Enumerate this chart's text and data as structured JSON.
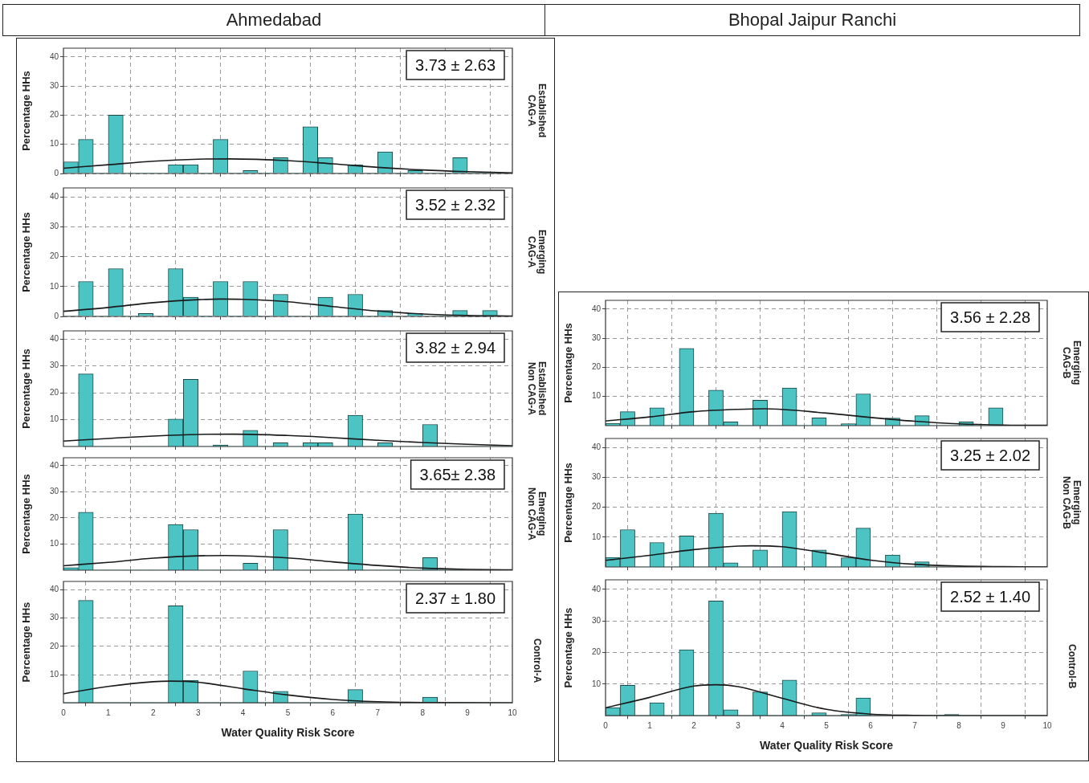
{
  "chart_data": [
    {
      "type": "histogram",
      "subtitle": "Ahmedabad",
      "y2label": "Established CAG-A",
      "ylabel": "Percentage HHs",
      "annotations": [
        "3.73 ± 2.63"
      ],
      "bins": [
        0,
        0.33,
        0.67,
        1,
        1.33,
        1.67,
        2,
        2.33,
        2.67,
        3,
        3.33,
        3.67,
        4,
        4.33,
        4.67,
        5,
        5.33,
        5.67,
        6,
        6.33,
        6.67,
        7,
        7.33,
        7.67,
        8,
        8.33,
        8.67,
        9,
        9.33,
        9.67,
        10
      ],
      "series": [
        {
          "color": "#4cc4c4",
          "values": [
            4,
            11.7,
            0,
            20,
            0,
            0,
            0,
            3,
            3,
            0,
            11.7,
            0,
            1,
            0,
            5.4,
            0,
            16,
            5.4,
            0,
            3,
            0,
            7.4,
            0,
            1,
            0,
            0,
            5.4,
            0,
            0,
            0
          ]
        },
        {
          "type": "line",
          "color": "#1a1a1a",
          "x": [
            0,
            1,
            2,
            3,
            3.7,
            5,
            6,
            7,
            8,
            9,
            10
          ],
          "values": [
            1.8,
            3,
            4.2,
            4.9,
            5,
            4.4,
            3.3,
            2.1,
            1.2,
            0.6,
            0.2
          ]
        }
      ],
      "xlim": [
        0,
        10
      ],
      "xticks": [
        0,
        1,
        2,
        3,
        4,
        5,
        6,
        7,
        8,
        9,
        10
      ],
      "ylim": [
        0,
        43
      ],
      "yticks": [
        0,
        10,
        20,
        30,
        40
      ],
      "grid": true,
      "tick_labels": "y"
    },
    {
      "type": "histogram",
      "y2label": "Emerging CAG-A",
      "ylabel": "Percentage HHs",
      "annotations": [
        "3.52 ± 2.32"
      ],
      "bins": [
        0,
        0.33,
        0.67,
        1,
        1.33,
        1.67,
        2,
        2.33,
        2.67,
        3,
        3.33,
        3.67,
        4,
        4.33,
        4.67,
        5,
        5.33,
        5.67,
        6,
        6.33,
        6.67,
        7,
        7.33,
        7.67,
        8,
        8.33,
        8.67,
        9,
        9.33,
        9.67,
        10
      ],
      "series": [
        {
          "color": "#4cc4c4",
          "values": [
            0,
            11.7,
            0,
            16,
            0,
            1,
            0,
            16,
            6.4,
            0,
            11.7,
            0,
            11.7,
            0,
            7.4,
            0,
            0,
            6.4,
            0,
            7.4,
            0,
            2,
            0,
            1,
            0,
            0,
            2,
            0,
            2,
            0
          ]
        },
        {
          "type": "line",
          "color": "#1a1a1a",
          "x": [
            0,
            1,
            2,
            3,
            3.5,
            4,
            5,
            6,
            7,
            8,
            9,
            10
          ],
          "values": [
            1.7,
            3,
            4.6,
            5.6,
            5.8,
            5.7,
            4.9,
            3.3,
            1.8,
            0.8,
            0.3,
            0.1
          ]
        }
      ],
      "xlim": [
        0,
        10
      ],
      "xticks": [
        0,
        1,
        2,
        3,
        4,
        5,
        6,
        7,
        8,
        9,
        10
      ],
      "ylim": [
        0,
        43
      ],
      "yticks": [
        0,
        10,
        20,
        30,
        40
      ],
      "grid": true,
      "tick_labels": "y"
    },
    {
      "type": "histogram",
      "y2label": "Established Non CAG-A",
      "ylabel": "Percentage HHs",
      "annotations": [
        "3.82 ± 2.94"
      ],
      "bins": [
        0,
        0.33,
        0.67,
        1,
        1.33,
        1.67,
        2,
        2.33,
        2.67,
        3,
        3.33,
        3.67,
        4,
        4.33,
        4.67,
        5,
        5.33,
        5.67,
        6,
        6.33,
        6.67,
        7,
        7.33,
        7.67,
        8,
        8.33,
        8.67,
        9,
        9.33,
        9.67,
        10
      ],
      "series": [
        {
          "color": "#4cc4c4",
          "values": [
            0,
            27,
            0,
            0,
            0,
            0,
            0,
            10.2,
            25,
            0,
            0.6,
            0,
            6,
            0,
            1.4,
            0,
            1.4,
            1.4,
            0,
            11.6,
            0,
            1.4,
            0,
            0,
            8.2,
            0,
            0,
            0,
            0,
            0
          ]
        },
        {
          "type": "line",
          "color": "#1a1a1a",
          "x": [
            0,
            1,
            2,
            3,
            3.8,
            5,
            6,
            7,
            8,
            9,
            10
          ],
          "values": [
            2,
            3,
            3.9,
            4.5,
            4.6,
            4.1,
            3.3,
            2.3,
            1.5,
            0.8,
            0.3
          ]
        }
      ],
      "xlim": [
        0,
        10
      ],
      "xticks": [
        0,
        1,
        2,
        3,
        4,
        5,
        6,
        7,
        8,
        9,
        10
      ],
      "ylim": [
        0,
        43
      ],
      "yticks": [
        10,
        20,
        30,
        40
      ],
      "grid": true,
      "tick_labels": "y"
    },
    {
      "type": "histogram",
      "y2label": "Emerging Non CAG-A",
      "ylabel": "Percentage HHs",
      "annotations": [
        "3.65± 2.38"
      ],
      "bins": [
        0,
        0.33,
        0.67,
        1,
        1.33,
        1.67,
        2,
        2.33,
        2.67,
        3,
        3.33,
        3.67,
        4,
        4.33,
        4.67,
        5,
        5.33,
        5.67,
        6,
        6.33,
        6.67,
        7,
        7.33,
        7.67,
        8,
        8.33,
        8.67,
        9,
        9.33,
        9.67,
        10
      ],
      "series": [
        {
          "color": "#4cc4c4",
          "values": [
            1,
            22.2,
            0,
            0,
            0,
            0,
            0,
            17.5,
            15.5,
            0,
            0,
            0,
            2.7,
            0,
            15.5,
            0,
            0,
            0,
            0,
            21.5,
            0,
            0,
            0,
            0,
            4.8,
            0,
            0,
            0,
            0,
            0
          ]
        },
        {
          "type": "line",
          "color": "#1a1a1a",
          "x": [
            0,
            1,
            2,
            3,
            3.6,
            5,
            6,
            7,
            8,
            9,
            10
          ],
          "values": [
            1.7,
            3,
            4.6,
            5.5,
            5.6,
            4.7,
            3.2,
            1.8,
            0.8,
            0.3,
            0.1
          ]
        }
      ],
      "xlim": [
        0,
        10
      ],
      "xticks": [
        0,
        1,
        2,
        3,
        4,
        5,
        6,
        7,
        8,
        9,
        10
      ],
      "ylim": [
        0,
        43
      ],
      "yticks": [
        10,
        20,
        30,
        40
      ],
      "grid": true,
      "tick_labels": "y"
    },
    {
      "type": "histogram",
      "y2label": "Control-A",
      "ylabel": "Percentage HHs",
      "xlabel": "Water Quality Risk Score",
      "annotations": [
        "2.37 ± 1.80"
      ],
      "bins": [
        0,
        0.33,
        0.67,
        1,
        1.33,
        1.67,
        2,
        2.33,
        2.67,
        3,
        3.33,
        3.67,
        4,
        4.33,
        4.67,
        5,
        5.33,
        5.67,
        6,
        6.33,
        6.67,
        7,
        7.33,
        7.67,
        8,
        8.33,
        8.67,
        9,
        9.33,
        9.67,
        10
      ],
      "series": [
        {
          "color": "#4cc4c4",
          "values": [
            0,
            36.3,
            0,
            0,
            0,
            0,
            0,
            34.4,
            8,
            0,
            0,
            0,
            11.3,
            0,
            4.1,
            0,
            0,
            0,
            0,
            4.7,
            0,
            0,
            0,
            0,
            2,
            0,
            0,
            0,
            0,
            0
          ]
        },
        {
          "type": "line",
          "color": "#1a1a1a",
          "x": [
            0,
            1,
            2,
            2.4,
            3,
            4,
            5,
            6,
            7,
            8,
            10
          ],
          "values": [
            3.2,
            5.8,
            7.5,
            7.7,
            7.3,
            5,
            2.8,
            1.2,
            0.4,
            0.1,
            0
          ]
        }
      ],
      "xlim": [
        0,
        10
      ],
      "xticks": [
        0,
        1,
        2,
        3,
        4,
        5,
        6,
        7,
        8,
        9,
        10
      ],
      "ylim": [
        0,
        43
      ],
      "yticks": [
        10,
        20,
        30,
        40
      ],
      "grid": true
    },
    {
      "type": "histogram",
      "subtitle": "Bhopal Jaipur Ranchi",
      "y2label": "Emerging CAG-B",
      "ylabel": "Percentage HHs",
      "annotations": [
        "3.56 ± 2.28"
      ],
      "bins": [
        0,
        0.33,
        0.67,
        1,
        1.33,
        1.67,
        2,
        2.33,
        2.67,
        3,
        3.33,
        3.67,
        4,
        4.33,
        4.67,
        5,
        5.33,
        5.67,
        6,
        6.33,
        6.67,
        7,
        7.33,
        7.67,
        8,
        8.33,
        8.67,
        9,
        9.33,
        9.67,
        10
      ],
      "series": [
        {
          "color": "#4cc4c4",
          "values": [
            0.8,
            4.8,
            0,
            6.1,
            0,
            26.5,
            0,
            12.2,
            1.3,
            0,
            8.7,
            0,
            12.9,
            0,
            2.7,
            0,
            0.7,
            10.9,
            0,
            2.6,
            0,
            3.4,
            0,
            0,
            1.3,
            0,
            6.1,
            0,
            0,
            0
          ]
        },
        {
          "type": "line",
          "color": "#1a1a1a",
          "x": [
            0,
            1,
            2,
            3,
            3.6,
            5,
            6,
            7,
            8,
            9,
            10
          ],
          "values": [
            1.6,
            3,
            4.8,
            5.6,
            5.8,
            4.3,
            2.8,
            1.5,
            0.6,
            0.2,
            0.1
          ]
        }
      ],
      "xlim": [
        0,
        10
      ],
      "xticks": [
        0,
        1,
        2,
        3,
        4,
        5,
        6,
        7,
        8,
        9,
        10
      ],
      "ylim": [
        0,
        43
      ],
      "yticks": [
        10,
        20,
        30,
        40
      ],
      "grid": true,
      "tick_labels": "y"
    },
    {
      "type": "histogram",
      "y2label": "Emerging Non CAG-B",
      "ylabel": "Percentage HHs",
      "annotations": [
        "3.25 ± 2.02"
      ],
      "bins": [
        0,
        0.33,
        0.67,
        1,
        1.33,
        1.67,
        2,
        2.33,
        2.67,
        3,
        3.33,
        3.67,
        4,
        4.33,
        4.67,
        5,
        5.33,
        5.67,
        6,
        6.33,
        6.67,
        7,
        7.33,
        7.67,
        8,
        8.33,
        8.67,
        9,
        9.33,
        9.67,
        10
      ],
      "series": [
        {
          "color": "#4cc4c4",
          "values": [
            3.2,
            12.5,
            0,
            8.2,
            0,
            10.4,
            0,
            18,
            1.4,
            0,
            5.7,
            0,
            18.5,
            0,
            5.7,
            0,
            3.1,
            13,
            0,
            4,
            0,
            1.7,
            0,
            0,
            0,
            0,
            0,
            0,
            0,
            0
          ]
        },
        {
          "type": "line",
          "color": "#1a1a1a",
          "x": [
            0,
            1,
            2,
            3,
            3.3,
            4,
            5,
            6,
            7,
            8,
            9,
            10
          ],
          "values": [
            2.2,
            3.9,
            5.8,
            7,
            7.1,
            6.8,
            4.6,
            2.3,
            0.9,
            0.3,
            0.1,
            0
          ]
        }
      ],
      "xlim": [
        0,
        10
      ],
      "xticks": [
        0,
        1,
        2,
        3,
        4,
        5,
        6,
        7,
        8,
        9,
        10
      ],
      "ylim": [
        0,
        43
      ],
      "yticks": [
        10,
        20,
        30,
        40
      ],
      "grid": true,
      "tick_labels": "y"
    },
    {
      "type": "histogram",
      "y2label": "Control-B",
      "ylabel": "Percentage HHs",
      "xlabel": "Water Quality Risk Score",
      "annotations": [
        "2.52 ± 1.40"
      ],
      "bins": [
        0,
        0.33,
        0.67,
        1,
        1.33,
        1.67,
        2,
        2.33,
        2.67,
        3,
        3.33,
        3.67,
        4,
        4.33,
        4.67,
        5,
        5.33,
        5.67,
        6,
        6.33,
        6.67,
        7,
        7.33,
        7.67,
        8,
        8.33,
        8.67,
        9,
        9.33,
        9.67,
        10
      ],
      "series": [
        {
          "color": "#4cc4c4",
          "values": [
            2.6,
            9.6,
            0,
            4.1,
            0,
            20.9,
            0,
            36.3,
            1.9,
            0,
            7.5,
            0,
            11.3,
            0,
            0.9,
            0,
            0.4,
            5.6,
            0,
            0,
            0,
            0,
            0,
            0.4,
            0,
            0,
            0,
            0,
            0,
            0
          ]
        },
        {
          "type": "line",
          "color": "#1a1a1a",
          "x": [
            0,
            1,
            2,
            2.5,
            3,
            4,
            5,
            6,
            7,
            8,
            10
          ],
          "values": [
            2.5,
            5.8,
            9.4,
            9.8,
            9.2,
            5.5,
            2,
            0.5,
            0.1,
            0,
            0
          ]
        }
      ],
      "xlim": [
        0,
        10
      ],
      "xticks": [
        0,
        1,
        2,
        3,
        4,
        5,
        6,
        7,
        8,
        9,
        10
      ],
      "ylim": [
        0,
        43
      ],
      "yticks": [
        10,
        20,
        30,
        40
      ],
      "grid": true
    }
  ]
}
